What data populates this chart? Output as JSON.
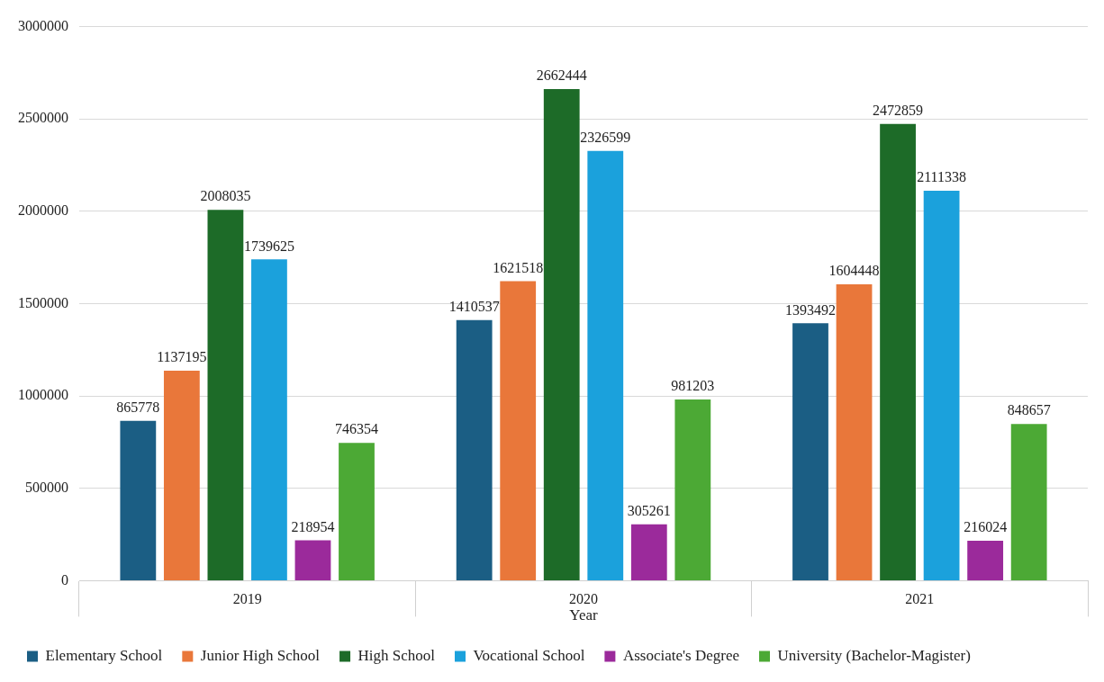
{
  "chart_data": {
    "type": "bar",
    "xlabel": "Year",
    "categories": [
      "2019",
      "2020",
      "2021"
    ],
    "series": [
      {
        "name": "Elementary School",
        "color": "#1b5e84",
        "values": [
          865778,
          1410537,
          1393492
        ]
      },
      {
        "name": "Junior High School",
        "color": "#e9773a",
        "values": [
          1137195,
          1621518,
          1604448
        ]
      },
      {
        "name": "High School",
        "color": "#1d6b28",
        "values": [
          2008035,
          2662444,
          2472859
        ]
      },
      {
        "name": "Vocational School",
        "color": "#1ba1dc",
        "values": [
          1739625,
          2326599,
          2111338
        ]
      },
      {
        "name": "Associate's Degree",
        "color": "#9b2a9b",
        "values": [
          218954,
          305261,
          216024
        ]
      },
      {
        "name": "University (Bachelor-Magister)",
        "color": "#4ca935",
        "values": [
          746354,
          981203,
          848657
        ]
      }
    ],
    "ylim": [
      0,
      3000000
    ],
    "yticks": [
      0,
      500000,
      1000000,
      1500000,
      2000000,
      2500000,
      3000000
    ],
    "grid": "y",
    "legend": "bottom",
    "data_labels": true
  }
}
